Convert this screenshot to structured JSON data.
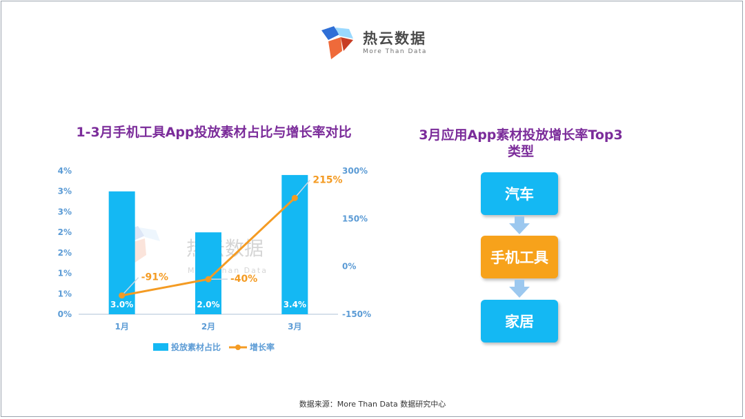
{
  "logo": {
    "name": "热云数据",
    "tagline": "More Than Data",
    "colors": [
      "#2f6fd6",
      "#ef6a3a",
      "#9ad9ff"
    ]
  },
  "watermark": {
    "name": "热云数据",
    "tagline": "More Than Data"
  },
  "chart_data": {
    "type": "bar+line",
    "title": "1-3月手机工具App投放素材占比与增长率对比",
    "categories": [
      "1月",
      "2月",
      "3月"
    ],
    "series": [
      {
        "name": "投放素材占比",
        "type": "bar",
        "axis": "left",
        "values": [
          3.0,
          2.0,
          3.4
        ],
        "labels": [
          "3.0%",
          "2.0%",
          "3.4%"
        ],
        "color": "#14b8f3"
      },
      {
        "name": "增长率",
        "type": "line",
        "axis": "right",
        "values": [
          -91,
          -40,
          215
        ],
        "labels": [
          "-91%",
          "-40%",
          "215%"
        ],
        "color": "#f49b23"
      }
    ],
    "left_axis": {
      "min": 0,
      "max": 3.5,
      "tick_values": [
        0,
        0.5,
        1,
        1.5,
        2,
        2.5,
        3,
        3.5
      ],
      "tick_labels": [
        "0%",
        "1%",
        "1%",
        "2%",
        "2%",
        "3%",
        "3%",
        "4%"
      ]
    },
    "right_axis": {
      "min": -150,
      "max": 300,
      "tick_values": [
        -150,
        0,
        150,
        300
      ],
      "tick_labels": [
        "-150%",
        "0%",
        "150%",
        "300%"
      ]
    },
    "legend": {
      "position": "bottom",
      "items": [
        "投放素材占比",
        "增长率"
      ]
    },
    "axis_color": "#5b9bd5"
  },
  "right_panel": {
    "title": "3月应用App素材投放增长率Top3类型",
    "items": [
      "汽车",
      "手机工具",
      "家居"
    ]
  },
  "footer": {
    "source": "数据来源：More Than Data 数据研究中心"
  }
}
